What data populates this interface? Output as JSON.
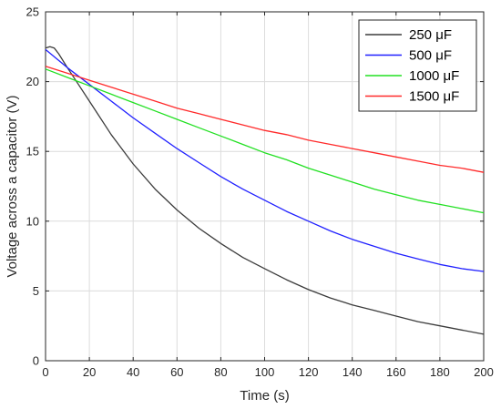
{
  "chart_data": {
    "type": "line",
    "title": "",
    "xlabel": "Time (s)",
    "ylabel": "Voltage across a capacitor (V)",
    "xlim": [
      0,
      200
    ],
    "ylim": [
      0,
      25
    ],
    "xticks": [
      0,
      20,
      40,
      60,
      80,
      100,
      120,
      140,
      160,
      180,
      200
    ],
    "yticks": [
      0,
      5,
      10,
      15,
      20,
      25
    ],
    "grid": true,
    "legend_position": "top-right",
    "series": [
      {
        "name": "250 μF",
        "color": "#3c3c3c",
        "x": [
          0,
          2,
          4,
          6,
          10,
          15,
          20,
          30,
          40,
          50,
          60,
          70,
          80,
          90,
          100,
          110,
          120,
          130,
          140,
          150,
          160,
          170,
          180,
          190,
          200
        ],
        "y": [
          22.4,
          22.5,
          22.4,
          22.0,
          21.0,
          19.8,
          18.6,
          16.2,
          14.1,
          12.3,
          10.8,
          9.5,
          8.4,
          7.4,
          6.6,
          5.8,
          5.1,
          4.5,
          4.0,
          3.6,
          3.2,
          2.8,
          2.5,
          2.2,
          1.9
        ]
      },
      {
        "name": "500 μF",
        "color": "#2020ff",
        "x": [
          0,
          10,
          20,
          30,
          40,
          50,
          60,
          70,
          80,
          90,
          100,
          110,
          120,
          130,
          140,
          150,
          160,
          170,
          180,
          190,
          200
        ],
        "y": [
          22.3,
          21.0,
          19.8,
          18.6,
          17.4,
          16.3,
          15.2,
          14.2,
          13.2,
          12.3,
          11.5,
          10.7,
          10.0,
          9.3,
          8.7,
          8.2,
          7.7,
          7.3,
          6.9,
          6.6,
          6.4
        ]
      },
      {
        "name": "1000 μF",
        "color": "#22e022",
        "x": [
          0,
          10,
          20,
          30,
          40,
          50,
          60,
          70,
          80,
          90,
          100,
          110,
          120,
          130,
          140,
          150,
          160,
          170,
          180,
          190,
          200
        ],
        "y": [
          20.9,
          20.3,
          19.7,
          19.1,
          18.5,
          17.9,
          17.3,
          16.7,
          16.1,
          15.5,
          14.9,
          14.4,
          13.8,
          13.3,
          12.8,
          12.3,
          11.9,
          11.5,
          11.2,
          10.9,
          10.6
        ]
      },
      {
        "name": "1500 μF",
        "color": "#ff2a2a",
        "x": [
          0,
          10,
          20,
          30,
          40,
          50,
          60,
          70,
          80,
          90,
          100,
          110,
          120,
          130,
          140,
          150,
          160,
          170,
          180,
          190,
          200
        ],
        "y": [
          21.1,
          20.6,
          20.1,
          19.6,
          19.1,
          18.6,
          18.1,
          17.7,
          17.3,
          16.9,
          16.5,
          16.2,
          15.8,
          15.5,
          15.2,
          14.9,
          14.6,
          14.3,
          14.0,
          13.8,
          13.5
        ]
      }
    ]
  }
}
